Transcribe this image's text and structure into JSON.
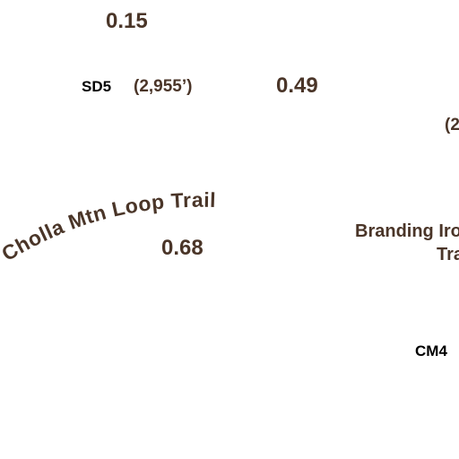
{
  "colors": {
    "label": "#4a3528",
    "marker": "#000000",
    "background": "#ffffff"
  },
  "segments": {
    "top_distance": "0.15",
    "mid_distance": "0.49",
    "lower_distance": "0.68"
  },
  "markers": {
    "sd5": "SD5",
    "cm4": "CM4"
  },
  "elevations": {
    "sd5_elevation": "(2,955’)",
    "right_elevation_partial": "(2"
  },
  "trails": {
    "cholla": "Cholla Mtn Loop Trail",
    "branding_iron_line1": "Branding Iro",
    "branding_iron_line2": "Tra"
  }
}
